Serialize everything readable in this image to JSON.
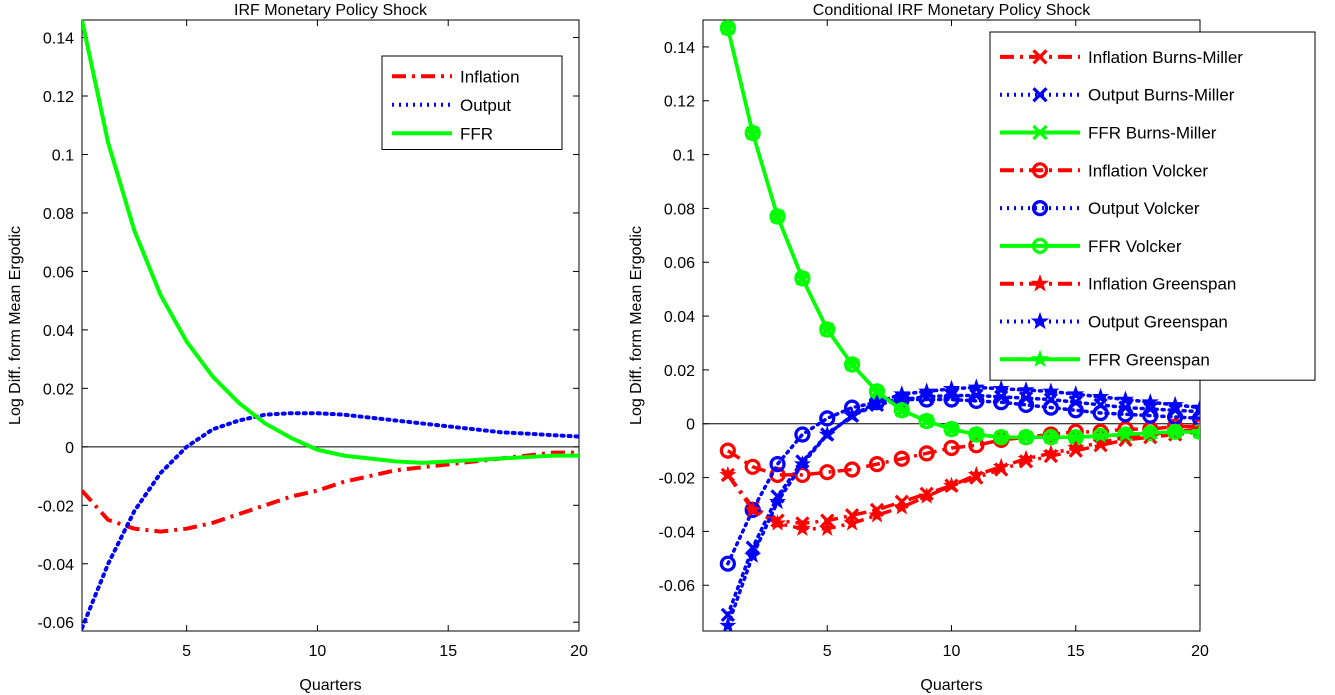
{
  "chart_data": [
    {
      "type": "line",
      "title": "IRF Monetary Policy Shock",
      "xlabel": "Quarters",
      "ylabel": "Log Diff. form Mean Ergodic",
      "xlim": [
        1,
        20
      ],
      "ylim": [
        -0.063,
        0.146
      ],
      "xticks": [
        5,
        10,
        15,
        20
      ],
      "yticks": [
        -0.06,
        -0.04,
        -0.02,
        0,
        0.02,
        0.04,
        0.06,
        0.08,
        0.1,
        0.12,
        0.14
      ],
      "ytick_labels": [
        "-0.06",
        "-0.04",
        "-0.02",
        "0",
        "0.02",
        "0.04",
        "0.06",
        "0.08",
        "0.1",
        "0.12",
        "0.14"
      ],
      "xtick_labels": [
        "5",
        "10",
        "15",
        "20"
      ],
      "zero_line": true,
      "grid": false,
      "legend_position": "top-right",
      "x": [
        1,
        2,
        3,
        4,
        5,
        6,
        7,
        8,
        9,
        10,
        11,
        12,
        13,
        14,
        15,
        16,
        17,
        18,
        19,
        20
      ],
      "series": [
        {
          "name": "Inflation",
          "color": "#ff0000",
          "style": "dashdot",
          "values": [
            -0.015,
            -0.025,
            -0.028,
            -0.029,
            -0.028,
            -0.026,
            -0.023,
            -0.02,
            -0.017,
            -0.015,
            -0.012,
            -0.01,
            -0.008,
            -0.007,
            -0.006,
            -0.005,
            -0.004,
            -0.003,
            -0.002,
            -0.002
          ]
        },
        {
          "name": "Output",
          "color": "#0000ff",
          "style": "dotted",
          "values": [
            -0.062,
            -0.04,
            -0.022,
            -0.009,
            0.0,
            0.006,
            0.009,
            0.011,
            0.0115,
            0.0115,
            0.011,
            0.01,
            0.009,
            0.008,
            0.007,
            0.006,
            0.005,
            0.0045,
            0.004,
            0.0035
          ]
        },
        {
          "name": "FFR",
          "color": "#00ff00",
          "style": "solid",
          "values": [
            0.146,
            0.104,
            0.074,
            0.052,
            0.036,
            0.024,
            0.015,
            0.008,
            0.003,
            -0.001,
            -0.003,
            -0.004,
            -0.005,
            -0.0055,
            -0.005,
            -0.0045,
            -0.004,
            -0.0035,
            -0.003,
            -0.003
          ]
        }
      ]
    },
    {
      "type": "line",
      "title": "Conditional IRF Monetary Policy Shock",
      "xlabel": "Quarters",
      "ylabel": "Log Diff. form Mean Ergodic",
      "xlim": [
        0,
        20
      ],
      "ylim": [
        -0.077,
        0.15
      ],
      "xticks": [
        5,
        10,
        15,
        20
      ],
      "yticks": [
        -0.06,
        -0.04,
        -0.02,
        0,
        0.02,
        0.04,
        0.06,
        0.08,
        0.1,
        0.12,
        0.14
      ],
      "ytick_labels": [
        "-0.06",
        "-0.04",
        "-0.02",
        "0",
        "0.02",
        "0.04",
        "0.06",
        "0.08",
        "0.1",
        "0.12",
        "0.14"
      ],
      "xtick_labels": [
        "5",
        "10",
        "15",
        "20"
      ],
      "zero_line": true,
      "grid": false,
      "legend_position": "top-right",
      "x": [
        1,
        2,
        3,
        4,
        5,
        6,
        7,
        8,
        9,
        10,
        11,
        12,
        13,
        14,
        15,
        16,
        17,
        18,
        19,
        20
      ],
      "series": [
        {
          "name": "Inflation Burns-Miller",
          "color": "#ff0000",
          "style": "dashdot",
          "marker": "x",
          "values": [
            -0.019,
            -0.031,
            -0.036,
            -0.037,
            -0.036,
            -0.034,
            -0.032,
            -0.029,
            -0.026,
            -0.023,
            -0.02,
            -0.017,
            -0.014,
            -0.012,
            -0.01,
            -0.008,
            -0.006,
            -0.005,
            -0.004,
            -0.003
          ]
        },
        {
          "name": "Output Burns-Miller",
          "color": "#0000ff",
          "style": "dotted",
          "marker": "x",
          "values": [
            -0.071,
            -0.046,
            -0.027,
            -0.014,
            -0.004,
            0.003,
            0.007,
            0.009,
            0.01,
            0.0105,
            0.0105,
            0.01,
            0.0095,
            0.009,
            0.008,
            0.007,
            0.006,
            0.0055,
            0.005,
            0.0045
          ]
        },
        {
          "name": "FFR Burns-Miller",
          "color": "#00ff00",
          "style": "solid",
          "marker": "x",
          "values": [
            0.147,
            0.108,
            0.077,
            0.054,
            0.035,
            0.022,
            0.012,
            0.005,
            0.001,
            -0.002,
            -0.004,
            -0.005,
            -0.005,
            -0.005,
            -0.005,
            -0.0045,
            -0.004,
            -0.0035,
            -0.003,
            -0.003
          ]
        },
        {
          "name": "Inflation Volcker",
          "color": "#ff0000",
          "style": "dashdot",
          "marker": "o",
          "values": [
            -0.01,
            -0.016,
            -0.019,
            -0.019,
            -0.018,
            -0.017,
            -0.015,
            -0.013,
            -0.011,
            -0.009,
            -0.008,
            -0.006,
            -0.005,
            -0.004,
            -0.003,
            -0.003,
            -0.002,
            -0.002,
            -0.001,
            -0.001
          ]
        },
        {
          "name": "Output Volcker",
          "color": "#0000ff",
          "style": "dotted",
          "marker": "o",
          "values": [
            -0.052,
            -0.032,
            -0.015,
            -0.004,
            0.002,
            0.006,
            0.008,
            0.009,
            0.009,
            0.009,
            0.0085,
            0.008,
            0.007,
            0.006,
            0.005,
            0.004,
            0.0035,
            0.003,
            0.0025,
            0.002
          ]
        },
        {
          "name": "FFR Volcker",
          "color": "#00ff00",
          "style": "solid",
          "marker": "o",
          "values": [
            0.147,
            0.108,
            0.077,
            0.054,
            0.035,
            0.022,
            0.012,
            0.005,
            0.001,
            -0.002,
            -0.004,
            -0.005,
            -0.005,
            -0.005,
            -0.005,
            -0.0045,
            -0.004,
            -0.0035,
            -0.003,
            -0.003
          ]
        },
        {
          "name": "Inflation Greenspan",
          "color": "#ff0000",
          "style": "dashdot",
          "marker": "star",
          "values": [
            -0.019,
            -0.032,
            -0.037,
            -0.039,
            -0.039,
            -0.037,
            -0.034,
            -0.031,
            -0.027,
            -0.023,
            -0.019,
            -0.016,
            -0.013,
            -0.011,
            -0.009,
            -0.007,
            -0.005,
            -0.004,
            -0.003,
            -0.002
          ]
        },
        {
          "name": "Output Greenspan",
          "color": "#0000ff",
          "style": "dotted",
          "marker": "star",
          "values": [
            -0.075,
            -0.049,
            -0.029,
            -0.015,
            -0.004,
            0.003,
            0.008,
            0.011,
            0.012,
            0.013,
            0.0135,
            0.013,
            0.0125,
            0.012,
            0.011,
            0.01,
            0.009,
            0.008,
            0.007,
            0.006
          ]
        },
        {
          "name": "FFR Greenspan",
          "color": "#00ff00",
          "style": "solid",
          "marker": "star",
          "values": [
            0.147,
            0.108,
            0.077,
            0.054,
            0.035,
            0.022,
            0.012,
            0.005,
            0.001,
            -0.002,
            -0.004,
            -0.005,
            -0.005,
            -0.005,
            -0.005,
            -0.0045,
            -0.004,
            -0.0035,
            -0.003,
            -0.003
          ]
        }
      ]
    }
  ]
}
